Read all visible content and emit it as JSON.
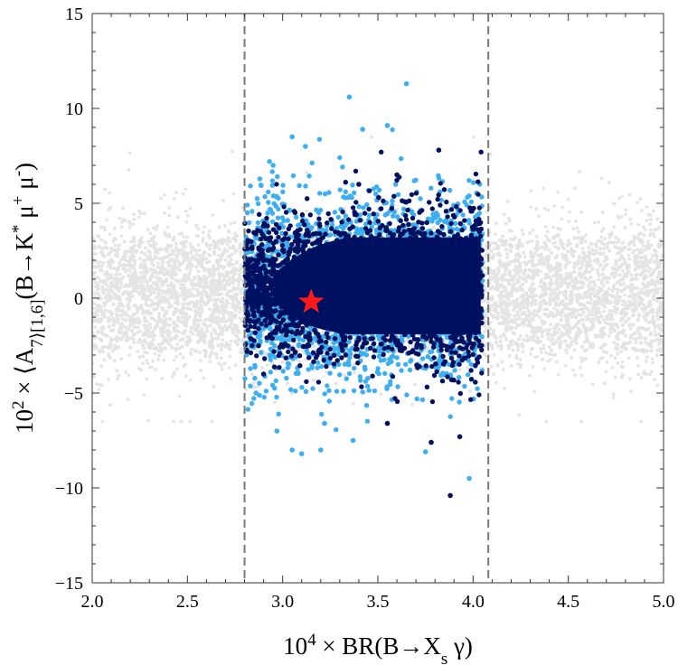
{
  "chart_data": {
    "type": "scatter",
    "xlabel": "10^4 × BR(B→X_s γ)",
    "ylabel": "10^2 × ⟨A_7⟩_[1,6](B→K^* μ^+ μ^-)",
    "xlim": [
      2.0,
      5.0
    ],
    "ylim": [
      -15,
      15
    ],
    "x_ticks": [
      "2.0",
      "2.5",
      "3.0",
      "3.5",
      "4.0",
      "4.5",
      "5.0"
    ],
    "y_ticks": [
      "−15",
      "−10",
      "−5",
      "0",
      "5",
      "10",
      "15"
    ],
    "grid": false,
    "legend": "none",
    "vlines": [
      2.8,
      4.08
    ],
    "series": [
      {
        "color": "#e4e4e4",
        "x_range": [
          2.0,
          5.0
        ],
        "y_center": 0.2,
        "y_spread": [
          -6.5,
          8.5
        ]
      },
      {
        "color": "#3daef0",
        "x_range": [
          2.8,
          4.05
        ],
        "y_center": 0.5,
        "y_spread": [
          -8.2,
          11.3
        ]
      },
      {
        "color": "#001060",
        "x_range": [
          2.8,
          4.05
        ],
        "y_center": 0.5,
        "y_spread": [
          -10.4,
          8.5
        ]
      }
    ],
    "marker": {
      "x": 3.15,
      "y": -0.2,
      "shape": "star",
      "color": "#ff1a1a"
    }
  }
}
